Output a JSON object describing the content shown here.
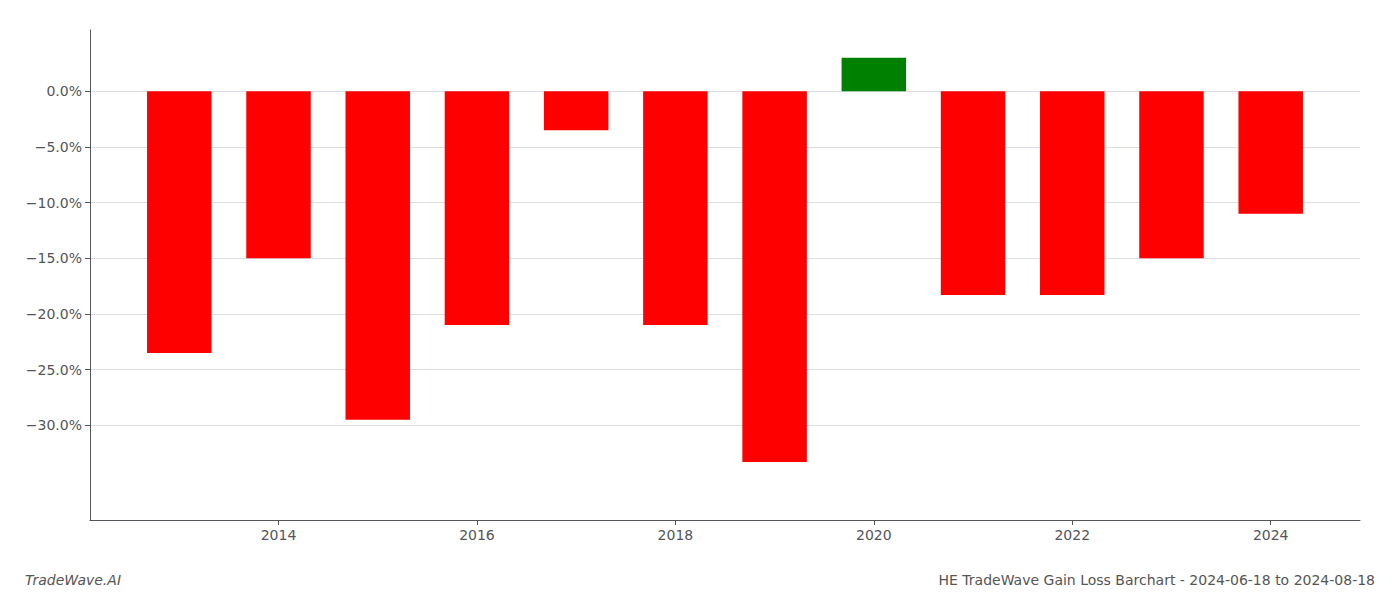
{
  "chart_data": {
    "type": "bar",
    "title": "HE TradeWave Gain Loss Barchart - 2024-06-18 to 2024-08-18",
    "annotations": [
      "TradeWave.AI"
    ],
    "x": [
      2013,
      2014,
      2015,
      2016,
      2017,
      2018,
      2019,
      2020,
      2021,
      2022,
      2023,
      2024
    ],
    "values": [
      -0.235,
      -0.15,
      -0.295,
      -0.21,
      -0.035,
      -0.21,
      -0.333,
      0.03,
      -0.183,
      -0.183,
      -0.15,
      -0.11
    ],
    "colors": [
      "#ff0000",
      "#ff0000",
      "#ff0000",
      "#ff0000",
      "#ff0000",
      "#ff0000",
      "#ff0000",
      "#008000",
      "#ff0000",
      "#ff0000",
      "#ff0000",
      "#ff0000"
    ],
    "xlim": [
      2012.1,
      2024.9
    ],
    "xticks": [
      2014,
      2016,
      2018,
      2020,
      2022,
      2024
    ],
    "ylim": [
      -0.385,
      0.055
    ],
    "yticks": [
      {
        "value": 0.0,
        "label": "0.0%"
      },
      {
        "value": -0.05,
        "label": "−5.0%"
      },
      {
        "value": -0.1,
        "label": "−10.0%"
      },
      {
        "value": -0.15,
        "label": "−15.0%"
      },
      {
        "value": -0.2,
        "label": "−20.0%"
      },
      {
        "value": -0.25,
        "label": "−25.0%"
      },
      {
        "value": -0.3,
        "label": "−30.0%"
      }
    ],
    "grid": true
  }
}
